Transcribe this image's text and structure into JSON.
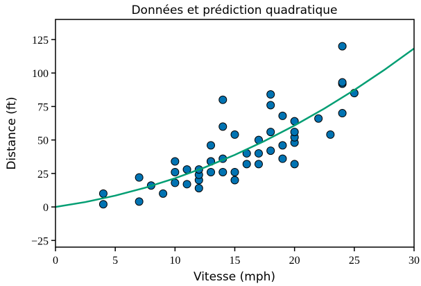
{
  "chart_data": {
    "type": "scatter",
    "title": "Données et prédiction quadratique",
    "xlabel": "Vitesse (mph)",
    "ylabel": "Distance (ft)",
    "xlim": [
      0,
      30
    ],
    "ylim": [
      -30,
      140
    ],
    "xticks": [
      0,
      5,
      10,
      15,
      20,
      25,
      30
    ],
    "yticks": [
      {
        "value": -25,
        "label": "−25"
      },
      0,
      25,
      50,
      75,
      100,
      125
    ],
    "series": [
      {
        "type": "scatter",
        "color": "#0173b2",
        "x": [
          4,
          4,
          7,
          7,
          8,
          9,
          10,
          10,
          10,
          11,
          11,
          12,
          12,
          12,
          12,
          13,
          13,
          13,
          13,
          14,
          14,
          14,
          14,
          15,
          15,
          15,
          16,
          16,
          17,
          17,
          17,
          18,
          18,
          18,
          18,
          19,
          19,
          19,
          20,
          20,
          20,
          20,
          20,
          22,
          23,
          24,
          24,
          24,
          24,
          25
        ],
        "values": [
          2,
          10,
          4,
          22,
          16,
          10,
          18,
          26,
          34,
          17,
          28,
          14,
          20,
          24,
          28,
          26,
          34,
          34,
          46,
          26,
          36,
          60,
          80,
          20,
          26,
          54,
          32,
          40,
          32,
          40,
          50,
          42,
          56,
          76,
          84,
          36,
          46,
          68,
          32,
          48,
          52,
          56,
          64,
          66,
          54,
          70,
          92,
          93,
          120,
          85
        ]
      },
      {
        "type": "line",
        "color": "#029e73",
        "x": [
          0,
          2.5,
          5,
          7.5,
          10,
          12.5,
          15,
          17.5,
          20,
          22.5,
          25,
          27.5,
          30
        ],
        "values": [
          0,
          3.66,
          8.45,
          14.36,
          21.4,
          29.57,
          38.87,
          49.29,
          60.84,
          73.51,
          87.31,
          102.24,
          118.3
        ]
      }
    ]
  }
}
